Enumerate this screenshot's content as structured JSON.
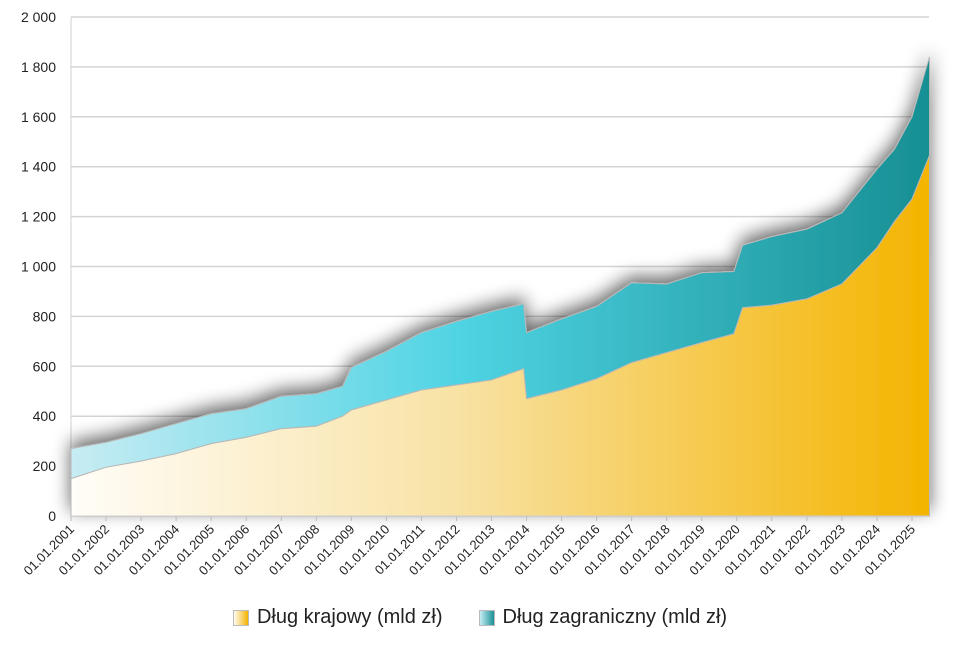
{
  "chart_data": {
    "type": "area",
    "stacked": true,
    "title": "",
    "xlabel": "",
    "ylabel": "",
    "ylim": [
      0,
      2000
    ],
    "yticks": [
      "0",
      "200",
      "400",
      "600",
      "800",
      "1 000",
      "1 200",
      "1 400",
      "1 600",
      "1 800",
      "2 000"
    ],
    "xticks": [
      "01.01.2001",
      "01.01.2002",
      "01.01.2003",
      "01.01.2004",
      "01.01.2005",
      "01.01.2006",
      "01.01.2007",
      "01.01.2008",
      "01.01.2009",
      "01.01.2010",
      "01.01.2011",
      "01.01.2012",
      "01.01.2013",
      "01.01.2014",
      "01.01.2015",
      "01.01.2016",
      "01.01.2017",
      "01.01.2018",
      "01.01.2019",
      "01.01.2020",
      "01.01.2021",
      "01.01.2022",
      "01.01.2023",
      "01.01.2024",
      "01.01.2025"
    ],
    "grid": true,
    "legend_position": "bottom",
    "x": [
      "2001-01",
      "2002-01",
      "2003-01",
      "2004-01",
      "2005-01",
      "2006-01",
      "2007-01",
      "2008-01",
      "2008-10",
      "2009-01",
      "2010-01",
      "2011-01",
      "2012-01",
      "2013-01",
      "2013-12",
      "2014-01",
      "2015-01",
      "2016-01",
      "2017-01",
      "2018-01",
      "2019-01",
      "2019-12",
      "2020-03",
      "2021-01",
      "2022-01",
      "2023-01",
      "2024-01",
      "2024-07",
      "2025-01",
      "2025-07"
    ],
    "series": [
      {
        "name": "Dług krajowy (mld zł)",
        "color": "#f4b400",
        "values": [
          150,
          195,
          220,
          250,
          290,
          315,
          350,
          360,
          400,
          425,
          465,
          505,
          525,
          545,
          590,
          470,
          505,
          550,
          615,
          655,
          695,
          730,
          835,
          845,
          870,
          930,
          1075,
          1180,
          1270,
          1445
        ]
      },
      {
        "name": "Dług zagraniczny (mld zł)",
        "color": "#1a9196",
        "values": [
          120,
          100,
          110,
          120,
          120,
          115,
          130,
          130,
          120,
          170,
          195,
          230,
          255,
          275,
          260,
          265,
          285,
          290,
          320,
          275,
          280,
          250,
          250,
          275,
          280,
          285,
          315,
          290,
          330,
          395
        ]
      }
    ]
  },
  "legend": {
    "domestic_label": "Dług krajowy (mld zł)",
    "foreign_label": "Dług zagraniczny (mld zł)"
  }
}
